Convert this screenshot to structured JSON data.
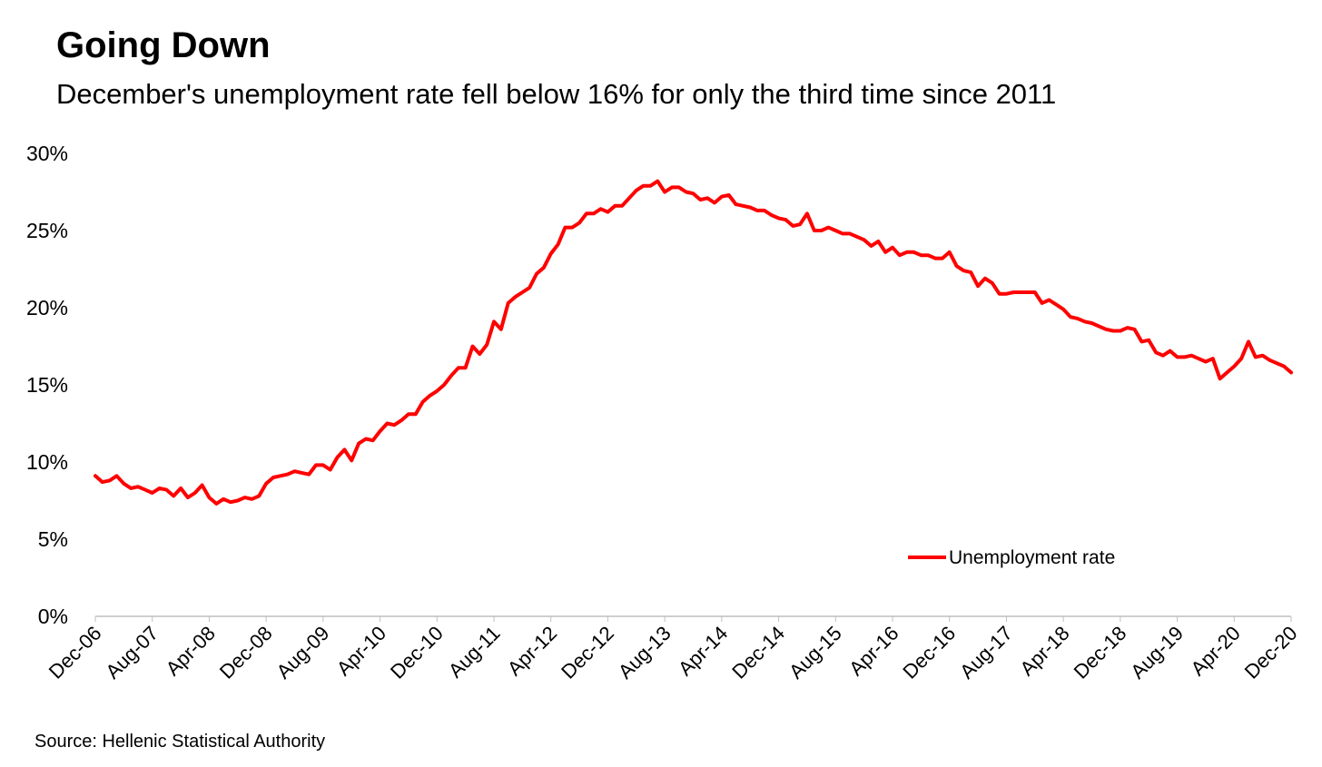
{
  "header": {
    "title": "Going Down",
    "subtitle": "December's unemployment rate fell below 16% for only the third time since 2011"
  },
  "footer": {
    "source": "Source: Hellenic Statistical Authority"
  },
  "colors": {
    "series": "#ff0000",
    "axis": "#bfbfbf",
    "text": "#000000"
  },
  "chart_data": {
    "type": "line",
    "title": "Going Down",
    "subtitle": "December's unemployment rate fell below 16% for only the third time since 2011",
    "xlabel": "",
    "ylabel": "",
    "ylim": [
      0,
      30
    ],
    "yticks": [
      0,
      5,
      10,
      15,
      20,
      25,
      30
    ],
    "ytick_labels": [
      "0%",
      "5%",
      "10%",
      "15%",
      "20%",
      "25%",
      "30%"
    ],
    "xtick_labels": [
      "Dec-06",
      "Aug-07",
      "Apr-08",
      "Dec-08",
      "Aug-09",
      "Apr-10",
      "Dec-10",
      "Aug-11",
      "Apr-12",
      "Dec-12",
      "Aug-13",
      "Apr-14",
      "Dec-14",
      "Aug-15",
      "Apr-16",
      "Dec-16",
      "Aug-17",
      "Apr-18",
      "Dec-18",
      "Aug-19",
      "Apr-20",
      "Dec-20"
    ],
    "grid": false,
    "legend": "bottom-right",
    "series": [
      {
        "name": "Unemployment rate",
        "color": "#ff0000",
        "x": [
          "2006-12",
          "2007-01",
          "2007-02",
          "2007-03",
          "2007-04",
          "2007-05",
          "2007-06",
          "2007-07",
          "2007-08",
          "2007-09",
          "2007-10",
          "2007-11",
          "2007-12",
          "2008-01",
          "2008-02",
          "2008-03",
          "2008-04",
          "2008-05",
          "2008-06",
          "2008-07",
          "2008-08",
          "2008-09",
          "2008-10",
          "2008-11",
          "2008-12",
          "2009-01",
          "2009-02",
          "2009-03",
          "2009-04",
          "2009-05",
          "2009-06",
          "2009-07",
          "2009-08",
          "2009-09",
          "2009-10",
          "2009-11",
          "2009-12",
          "2010-01",
          "2010-02",
          "2010-03",
          "2010-04",
          "2010-05",
          "2010-06",
          "2010-07",
          "2010-08",
          "2010-09",
          "2010-10",
          "2010-11",
          "2010-12",
          "2011-01",
          "2011-02",
          "2011-03",
          "2011-04",
          "2011-05",
          "2011-06",
          "2011-07",
          "2011-08",
          "2011-09",
          "2011-10",
          "2011-11",
          "2011-12",
          "2012-01",
          "2012-02",
          "2012-03",
          "2012-04",
          "2012-05",
          "2012-06",
          "2012-07",
          "2012-08",
          "2012-09",
          "2012-10",
          "2012-11",
          "2012-12",
          "2013-01",
          "2013-02",
          "2013-03",
          "2013-04",
          "2013-05",
          "2013-06",
          "2013-07",
          "2013-08",
          "2013-09",
          "2013-10",
          "2013-11",
          "2013-12",
          "2014-01",
          "2014-02",
          "2014-03",
          "2014-04",
          "2014-05",
          "2014-06",
          "2014-07",
          "2014-08",
          "2014-09",
          "2014-10",
          "2014-11",
          "2014-12",
          "2015-01",
          "2015-02",
          "2015-03",
          "2015-04",
          "2015-05",
          "2015-06",
          "2015-07",
          "2015-08",
          "2015-09",
          "2015-10",
          "2015-11",
          "2015-12",
          "2016-01",
          "2016-02",
          "2016-03",
          "2016-04",
          "2016-05",
          "2016-06",
          "2016-07",
          "2016-08",
          "2016-09",
          "2016-10",
          "2016-11",
          "2016-12",
          "2017-01",
          "2017-02",
          "2017-03",
          "2017-04",
          "2017-05",
          "2017-06",
          "2017-07",
          "2017-08",
          "2017-09",
          "2017-10",
          "2017-11",
          "2017-12",
          "2018-01",
          "2018-02",
          "2018-03",
          "2018-04",
          "2018-05",
          "2018-06",
          "2018-07",
          "2018-08",
          "2018-09",
          "2018-10",
          "2018-11",
          "2018-12",
          "2019-01",
          "2019-02",
          "2019-03",
          "2019-04",
          "2019-05",
          "2019-06",
          "2019-07",
          "2019-08",
          "2019-09",
          "2019-10",
          "2019-11",
          "2019-12",
          "2020-01",
          "2020-02",
          "2020-03",
          "2020-04",
          "2020-05",
          "2020-06",
          "2020-07",
          "2020-08",
          "2020-09",
          "2020-10",
          "2020-11",
          "2020-12"
        ],
        "values": [
          9.1,
          8.7,
          8.8,
          9.1,
          8.6,
          8.3,
          8.4,
          8.2,
          8.0,
          8.3,
          8.2,
          7.8,
          8.3,
          7.7,
          8.0,
          8.5,
          7.7,
          7.3,
          7.6,
          7.4,
          7.5,
          7.7,
          7.6,
          7.8,
          8.6,
          9.0,
          9.1,
          9.2,
          9.4,
          9.3,
          9.2,
          9.8,
          9.8,
          9.5,
          10.3,
          10.8,
          10.1,
          11.2,
          11.5,
          11.4,
          12.0,
          12.5,
          12.4,
          12.7,
          13.1,
          13.1,
          13.9,
          14.3,
          14.6,
          15.0,
          15.6,
          16.1,
          16.1,
          17.5,
          17.0,
          17.6,
          19.1,
          18.6,
          20.3,
          20.7,
          21.0,
          21.3,
          22.2,
          22.6,
          23.5,
          24.1,
          25.2,
          25.2,
          25.5,
          26.1,
          26.1,
          26.4,
          26.2,
          26.6,
          26.6,
          27.1,
          27.6,
          27.9,
          27.9,
          28.2,
          27.5,
          27.8,
          27.8,
          27.5,
          27.4,
          27.0,
          27.1,
          26.8,
          27.2,
          27.3,
          26.7,
          26.6,
          26.5,
          26.3,
          26.3,
          26.0,
          25.8,
          25.7,
          25.3,
          25.4,
          26.1,
          25.0,
          25.0,
          25.2,
          25.0,
          24.8,
          24.8,
          24.6,
          24.4,
          24.0,
          24.3,
          23.6,
          23.9,
          23.4,
          23.6,
          23.6,
          23.4,
          23.4,
          23.2,
          23.2,
          23.6,
          22.7,
          22.4,
          22.3,
          21.4,
          21.9,
          21.6,
          20.9,
          20.9,
          21.0,
          21.0,
          21.0,
          21.0,
          20.3,
          20.5,
          20.2,
          19.9,
          19.4,
          19.3,
          19.1,
          19.0,
          18.8,
          18.6,
          18.5,
          18.5,
          18.7,
          18.6,
          17.8,
          17.9,
          17.1,
          16.9,
          17.2,
          16.8,
          16.8,
          16.9,
          16.7,
          16.5,
          16.7,
          15.4,
          15.8,
          16.2,
          16.7,
          17.8,
          16.8,
          16.9,
          16.6,
          16.4,
          16.2,
          15.8
        ]
      }
    ]
  }
}
